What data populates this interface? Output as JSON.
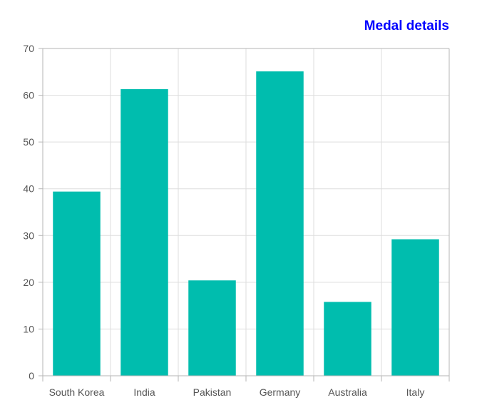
{
  "chart_data": {
    "type": "bar",
    "title": "Medal details",
    "xlabel": "",
    "ylabel": "",
    "categories": [
      "South Korea",
      "India",
      "Pakistan",
      "Germany",
      "Australia",
      "Italy"
    ],
    "values": [
      39.4,
      61.3,
      20.4,
      65.1,
      15.8,
      29.2
    ],
    "ylim": [
      0,
      70
    ],
    "yticks": [
      "0",
      "10",
      "20",
      "30",
      "40",
      "50",
      "60",
      "70"
    ],
    "grid": true,
    "legend": "none"
  },
  "colors": {
    "bar": "#00bdae",
    "title": "#0000ff",
    "grid": "#dddddd",
    "axis": "#b5b5b5",
    "text": "#555555"
  }
}
